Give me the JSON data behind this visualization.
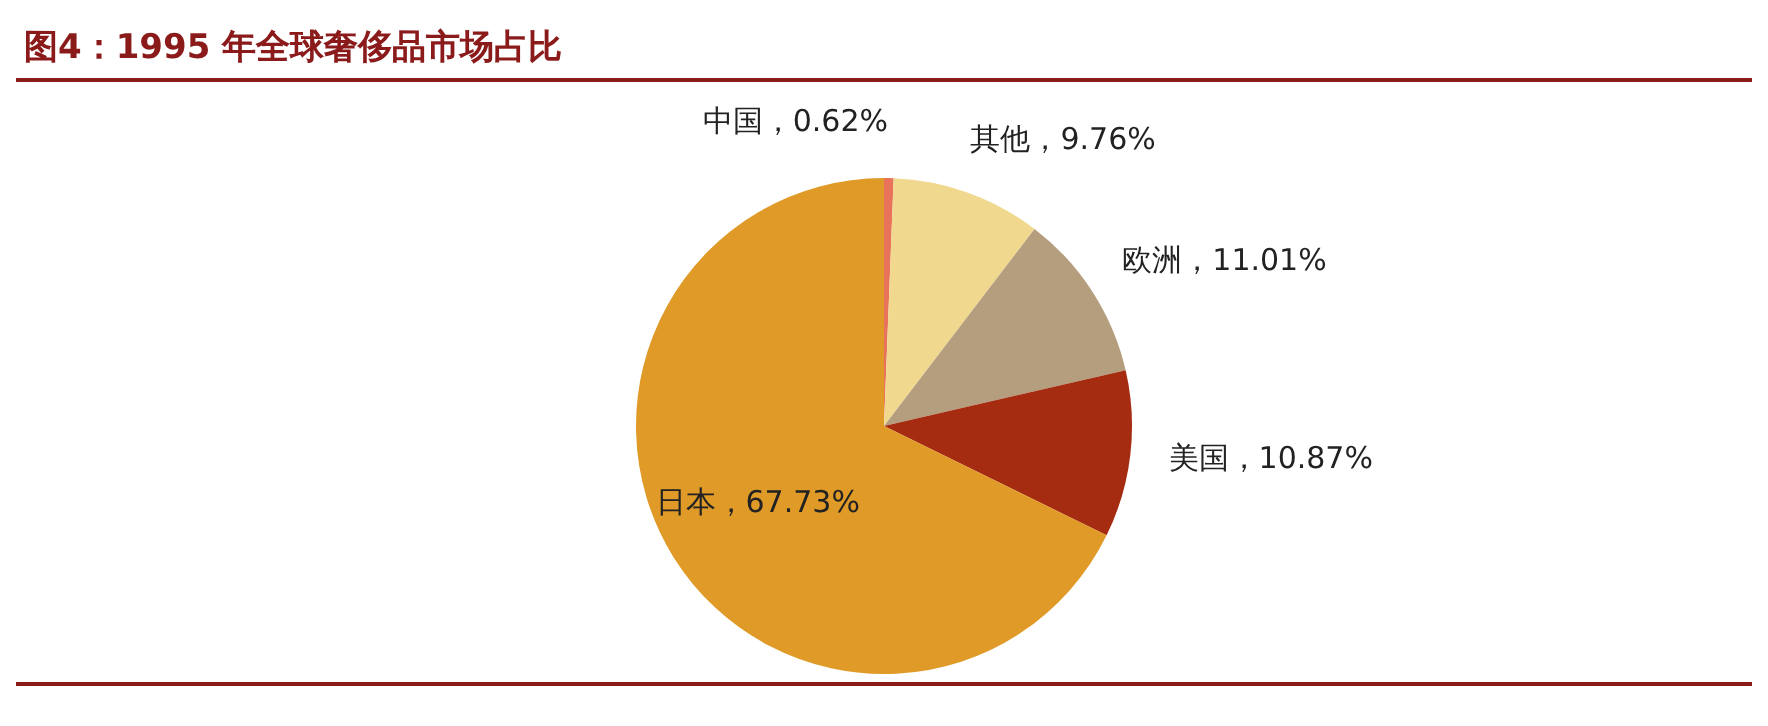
{
  "chart_data": {
    "type": "pie",
    "title": "图4：1995 年全球奢侈品市场占比",
    "categories": [
      "中国",
      "其他",
      "欧洲",
      "美国",
      "日本"
    ],
    "values": [
      0.62,
      9.76,
      11.01,
      10.87,
      67.73
    ],
    "value_labels": [
      "0.62%",
      "9.76%",
      "11.01%",
      "10.87%",
      "67.73%"
    ],
    "colors": [
      "#e8735a",
      "#f0d98e",
      "#b59e7e",
      "#a52c10",
      "#e09a28"
    ],
    "legend": false
  }
}
